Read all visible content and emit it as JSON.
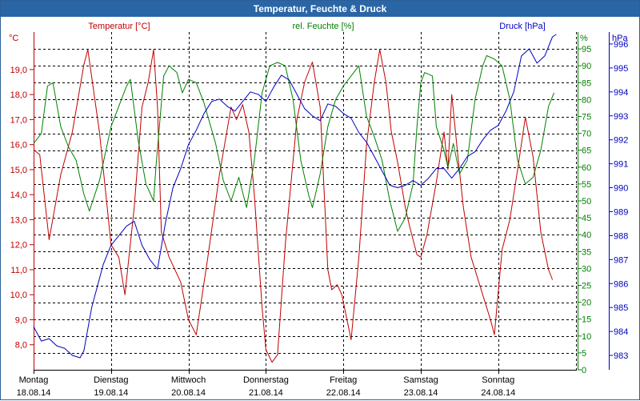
{
  "window": {
    "title": "Temperatur, Feuchte & Druck"
  },
  "chart_data": {
    "type": "line",
    "x_categories": [
      {
        "day": "Montag",
        "date": "18.08.14"
      },
      {
        "day": "Dienstag",
        "date": "19.08.14"
      },
      {
        "day": "Mittwoch",
        "date": "20.08.14"
      },
      {
        "day": "Donnerstag",
        "date": "21.08.14"
      },
      {
        "day": "Freitag",
        "date": "22.08.14"
      },
      {
        "day": "Samstag",
        "date": "23.08.14"
      },
      {
        "day": "Sonntag",
        "date": "24.08.14"
      }
    ],
    "axes": {
      "temperature": {
        "unit": "°C",
        "range": [
          7.0,
          20.5
        ],
        "ticks": [
          "8,0",
          "9,0",
          "10,0",
          "11,0",
          "12,0",
          "13,0",
          "14,0",
          "15,0",
          "16,0",
          "17,0",
          "18,0",
          "19,0"
        ]
      },
      "humidity": {
        "unit": "%",
        "range": [
          0,
          100
        ],
        "ticks": [
          "0",
          "5",
          "10",
          "15",
          "20",
          "25",
          "30",
          "35",
          "40",
          "45",
          "50",
          "55",
          "60",
          "65",
          "70",
          "75",
          "80",
          "85",
          "90",
          "95"
        ]
      },
      "pressure": {
        "unit": "hPa",
        "range": [
          982.4,
          996.5
        ],
        "ticks": [
          "983",
          "984",
          "985",
          "986",
          "987",
          "988",
          "989",
          "990",
          "991",
          "992",
          "993",
          "994",
          "995",
          "996"
        ]
      }
    },
    "grid": true,
    "series": [
      {
        "name": "Temperatur [°C]",
        "axis": "temperature",
        "color": "#c00000",
        "points": [
          [
            0,
            15.8
          ],
          [
            0.08,
            15.6
          ],
          [
            0.2,
            12.2
          ],
          [
            0.35,
            14.8
          ],
          [
            0.5,
            16.5
          ],
          [
            0.65,
            19.2
          ],
          [
            0.7,
            19.8
          ],
          [
            0.85,
            16.5
          ],
          [
            0.95,
            13.5
          ],
          [
            1.0,
            12.0
          ],
          [
            1.1,
            11.5
          ],
          [
            1.18,
            10.0
          ],
          [
            1.3,
            13.5
          ],
          [
            1.4,
            17.5
          ],
          [
            1.48,
            18.5
          ],
          [
            1.55,
            19.8
          ],
          [
            1.6,
            17.5
          ],
          [
            1.65,
            12.5
          ],
          [
            1.75,
            11.5
          ],
          [
            1.9,
            10.5
          ],
          [
            2.0,
            9.0
          ],
          [
            2.1,
            8.4
          ],
          [
            2.25,
            11.5
          ],
          [
            2.4,
            14.8
          ],
          [
            2.55,
            17.5
          ],
          [
            2.62,
            17.0
          ],
          [
            2.7,
            17.6
          ],
          [
            2.78,
            16.5
          ],
          [
            2.85,
            14.0
          ],
          [
            2.95,
            9.5
          ],
          [
            3.0,
            7.8
          ],
          [
            3.08,
            7.3
          ],
          [
            3.15,
            7.6
          ],
          [
            3.25,
            12.0
          ],
          [
            3.4,
            17.0
          ],
          [
            3.5,
            18.5
          ],
          [
            3.6,
            19.3
          ],
          [
            3.7,
            17.5
          ],
          [
            3.8,
            11.0
          ],
          [
            3.85,
            10.2
          ],
          [
            3.92,
            10.4
          ],
          [
            3.98,
            10.0
          ],
          [
            4.1,
            8.2
          ],
          [
            4.2,
            11.5
          ],
          [
            4.3,
            16.0
          ],
          [
            4.4,
            18.5
          ],
          [
            4.47,
            19.8
          ],
          [
            4.55,
            18.5
          ],
          [
            4.62,
            16.5
          ],
          [
            4.7,
            15.3
          ],
          [
            4.8,
            13.5
          ],
          [
            4.85,
            12.8
          ],
          [
            4.95,
            11.6
          ],
          [
            5.0,
            11.5
          ],
          [
            5.08,
            12.4
          ],
          [
            5.2,
            14.5
          ],
          [
            5.3,
            16.5
          ],
          [
            5.35,
            15.0
          ],
          [
            5.4,
            18.0
          ],
          [
            5.48,
            15.5
          ],
          [
            5.55,
            13.5
          ],
          [
            5.65,
            11.5
          ],
          [
            5.8,
            10.0
          ],
          [
            5.9,
            9.0
          ],
          [
            5.95,
            8.4
          ],
          [
            6.05,
            11.8
          ],
          [
            6.15,
            13.0
          ],
          [
            6.25,
            15.0
          ],
          [
            6.35,
            17.1
          ],
          [
            6.45,
            15.5
          ],
          [
            6.55,
            12.5
          ],
          [
            6.65,
            11.0
          ],
          [
            6.7,
            10.6
          ]
        ]
      },
      {
        "name": "rel. Feuchte [%]",
        "axis": "humidity",
        "color": "#008000",
        "points": [
          [
            0,
            67
          ],
          [
            0.1,
            70
          ],
          [
            0.18,
            84
          ],
          [
            0.25,
            85
          ],
          [
            0.35,
            72
          ],
          [
            0.45,
            66
          ],
          [
            0.55,
            62
          ],
          [
            0.65,
            52
          ],
          [
            0.72,
            47
          ],
          [
            0.85,
            56
          ],
          [
            1.0,
            72
          ],
          [
            1.1,
            78
          ],
          [
            1.2,
            84
          ],
          [
            1.25,
            86
          ],
          [
            1.35,
            68
          ],
          [
            1.45,
            55
          ],
          [
            1.55,
            50
          ],
          [
            1.58,
            60
          ],
          [
            1.68,
            87
          ],
          [
            1.75,
            90
          ],
          [
            1.85,
            88
          ],
          [
            1.92,
            82
          ],
          [
            2.0,
            86
          ],
          [
            2.1,
            85
          ],
          [
            2.2,
            79
          ],
          [
            2.35,
            67
          ],
          [
            2.45,
            56
          ],
          [
            2.55,
            50
          ],
          [
            2.65,
            57
          ],
          [
            2.75,
            48
          ],
          [
            2.85,
            62
          ],
          [
            2.95,
            82
          ],
          [
            3.05,
            90
          ],
          [
            3.15,
            91
          ],
          [
            3.25,
            90
          ],
          [
            3.35,
            80
          ],
          [
            3.45,
            62
          ],
          [
            3.55,
            52
          ],
          [
            3.6,
            48
          ],
          [
            3.7,
            58
          ],
          [
            3.8,
            72
          ],
          [
            3.9,
            80
          ],
          [
            4.0,
            84
          ],
          [
            4.1,
            87
          ],
          [
            4.2,
            90
          ],
          [
            4.3,
            75
          ],
          [
            4.4,
            69
          ],
          [
            4.5,
            62
          ],
          [
            4.6,
            50
          ],
          [
            4.7,
            41
          ],
          [
            4.8,
            45
          ],
          [
            4.9,
            55
          ],
          [
            4.95,
            72
          ],
          [
            5.0,
            85
          ],
          [
            5.05,
            88
          ],
          [
            5.15,
            87
          ],
          [
            5.2,
            72
          ],
          [
            5.3,
            65
          ],
          [
            5.35,
            60
          ],
          [
            5.42,
            67
          ],
          [
            5.5,
            58
          ],
          [
            5.6,
            62
          ],
          [
            5.7,
            80
          ],
          [
            5.8,
            90
          ],
          [
            5.85,
            93
          ],
          [
            5.95,
            92
          ],
          [
            6.05,
            90
          ],
          [
            6.15,
            80
          ],
          [
            6.25,
            62
          ],
          [
            6.35,
            55
          ],
          [
            6.45,
            57
          ],
          [
            6.55,
            65
          ],
          [
            6.65,
            78
          ],
          [
            6.72,
            82
          ]
        ]
      },
      {
        "name": "Druck [hPa]",
        "axis": "pressure",
        "color": "#0000c0",
        "points": [
          [
            0,
            984.2
          ],
          [
            0.1,
            983.6
          ],
          [
            0.2,
            983.7
          ],
          [
            0.3,
            983.4
          ],
          [
            0.4,
            983.3
          ],
          [
            0.5,
            983.0
          ],
          [
            0.6,
            982.9
          ],
          [
            0.65,
            983.2
          ],
          [
            0.75,
            985.0
          ],
          [
            0.9,
            986.8
          ],
          [
            1.0,
            987.6
          ],
          [
            1.1,
            988.0
          ],
          [
            1.2,
            988.4
          ],
          [
            1.3,
            988.6
          ],
          [
            1.4,
            987.6
          ],
          [
            1.5,
            987.0
          ],
          [
            1.6,
            986.6
          ],
          [
            1.7,
            988.5
          ],
          [
            1.8,
            990.0
          ],
          [
            1.9,
            990.8
          ],
          [
            2.0,
            991.8
          ],
          [
            2.1,
            992.4
          ],
          [
            2.2,
            993.1
          ],
          [
            2.3,
            993.6
          ],
          [
            2.4,
            993.7
          ],
          [
            2.5,
            993.4
          ],
          [
            2.6,
            993.2
          ],
          [
            2.7,
            993.6
          ],
          [
            2.8,
            994.0
          ],
          [
            2.9,
            993.9
          ],
          [
            3.0,
            993.6
          ],
          [
            3.1,
            994.2
          ],
          [
            3.2,
            994.7
          ],
          [
            3.3,
            994.5
          ],
          [
            3.4,
            993.9
          ],
          [
            3.5,
            993.3
          ],
          [
            3.6,
            993.0
          ],
          [
            3.7,
            992.8
          ],
          [
            3.8,
            993.5
          ],
          [
            3.9,
            993.4
          ],
          [
            4.0,
            993.1
          ],
          [
            4.1,
            992.9
          ],
          [
            4.2,
            992.3
          ],
          [
            4.3,
            991.9
          ],
          [
            4.4,
            991.3
          ],
          [
            4.5,
            990.7
          ],
          [
            4.6,
            990.1
          ],
          [
            4.7,
            990.0
          ],
          [
            4.8,
            990.1
          ],
          [
            4.9,
            990.3
          ],
          [
            5.0,
            990.1
          ],
          [
            5.1,
            990.4
          ],
          [
            5.2,
            990.8
          ],
          [
            5.3,
            990.8
          ],
          [
            5.4,
            990.4
          ],
          [
            5.5,
            990.8
          ],
          [
            5.6,
            991.3
          ],
          [
            5.7,
            991.5
          ],
          [
            5.8,
            992.0
          ],
          [
            5.9,
            992.4
          ],
          [
            6.0,
            992.6
          ],
          [
            6.1,
            993.2
          ],
          [
            6.2,
            994.0
          ],
          [
            6.3,
            995.5
          ],
          [
            6.4,
            995.8
          ],
          [
            6.5,
            995.2
          ],
          [
            6.6,
            995.5
          ],
          [
            6.7,
            996.3
          ],
          [
            6.75,
            996.4
          ]
        ]
      }
    ]
  }
}
